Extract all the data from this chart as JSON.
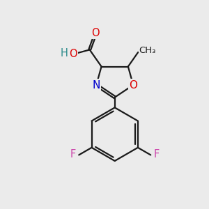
{
  "bg_color": "#ebebeb",
  "bond_color": "#1a1a1a",
  "bond_width": 1.6,
  "atom_colors": {
    "O": "#dd0000",
    "N": "#0000cc",
    "F": "#cc44aa",
    "C": "#1a1a1a",
    "H": "#2a8a8a"
  },
  "font_size": 10.5,
  "fig_size": [
    3.0,
    3.0
  ],
  "dpi": 100,
  "xlim": [
    0,
    10
  ],
  "ylim": [
    0,
    10
  ]
}
